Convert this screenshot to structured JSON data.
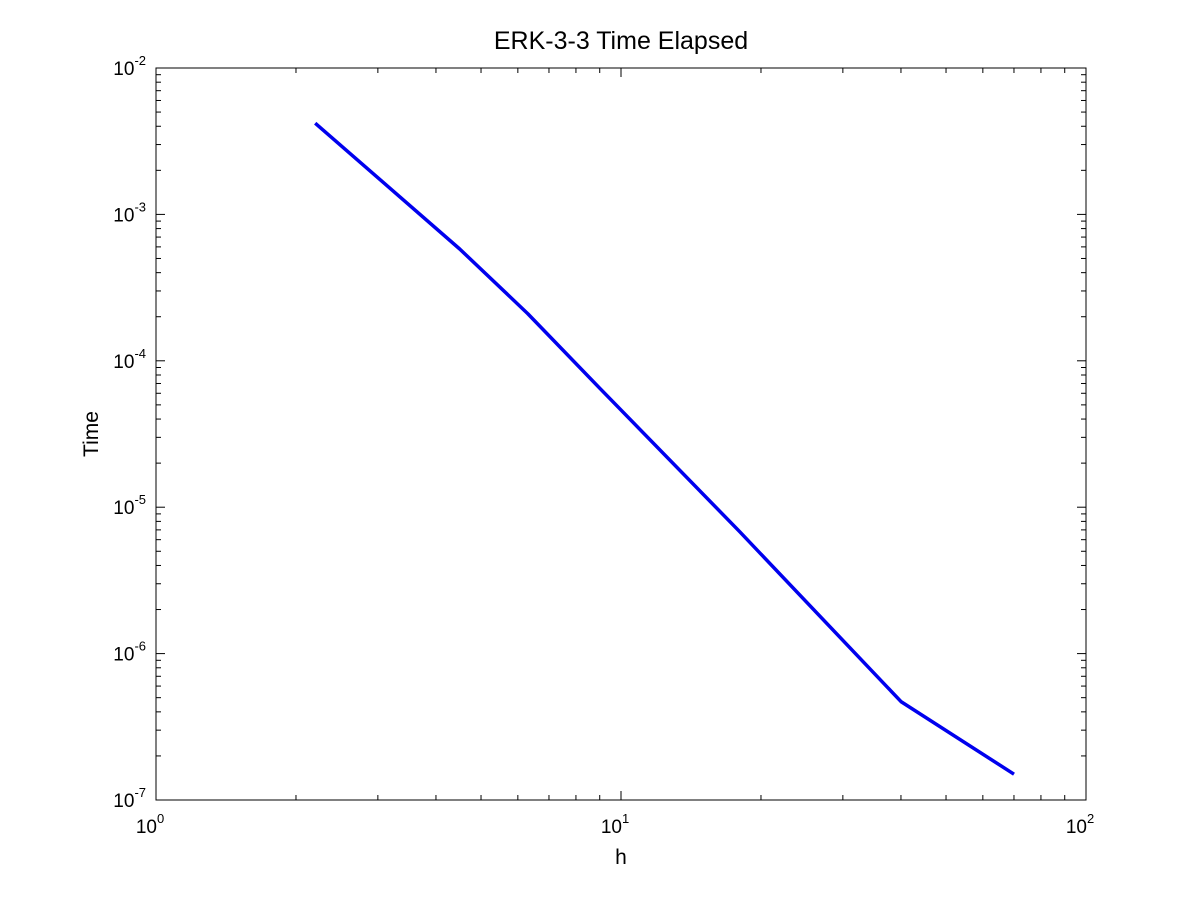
{
  "chart_data": {
    "type": "line",
    "title": "ERK-3-3 Time Elapsed",
    "xlabel": "h",
    "ylabel": "Time",
    "x_scale": "log",
    "y_scale": "log",
    "xlim": [
      1,
      100
    ],
    "ylim": [
      1e-07,
      0.01
    ],
    "grid": false,
    "x_ticks": [
      {
        "value": 1,
        "base": "10",
        "exp": "0"
      },
      {
        "value": 10,
        "base": "10",
        "exp": "1"
      },
      {
        "value": 100,
        "base": "10",
        "exp": "2"
      }
    ],
    "y_ticks": [
      {
        "value": 1e-07,
        "base": "10",
        "exp": "-7"
      },
      {
        "value": 1e-06,
        "base": "10",
        "exp": "-6"
      },
      {
        "value": 1e-05,
        "base": "10",
        "exp": "-5"
      },
      {
        "value": 0.0001,
        "base": "10",
        "exp": "-4"
      },
      {
        "value": 0.001,
        "base": "10",
        "exp": "-3"
      },
      {
        "value": 0.01,
        "base": "10",
        "exp": "-2"
      }
    ],
    "series": [
      {
        "color": "#0000ee",
        "x": [
          2.2,
          4.5,
          6.3,
          9.0,
          18.0,
          40.0,
          70.0
        ],
        "y": [
          0.0042,
          0.00058,
          0.00021,
          6.5e-05,
          6.8e-06,
          4.7e-07,
          1.5e-07
        ]
      }
    ]
  }
}
